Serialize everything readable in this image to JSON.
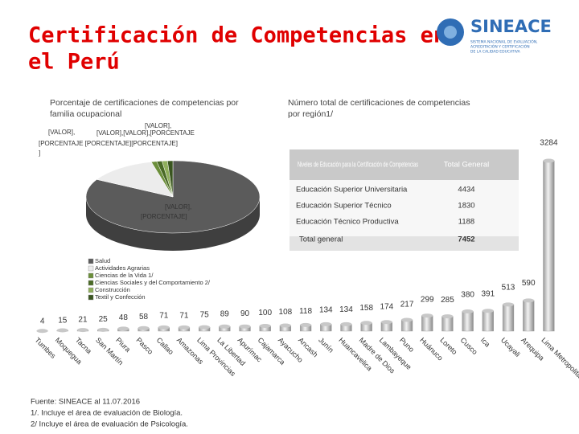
{
  "title": [
    "Certificación de Competencias en",
    "el Perú"
  ],
  "logo": {
    "name": "SINEACE",
    "subtitle": [
      "SISTEMA NACIONAL DE EVALUACIÓN,",
      "ACREDITACIÓN Y CERTIFICACIÓN",
      "DE LA CALIDAD EDUCATIVA"
    ]
  },
  "chart_data": [
    {
      "type": "pie",
      "title": [
        "Porcentaje de certificaciones de competencias por",
        "familia ocupacional"
      ],
      "categories": [
        "Salud",
        "Actividades Agrarias",
        "Ciencias de la Vida 1/",
        "Ciencias Sociales y del Comportamiento 2/",
        "Construcción",
        "Textil y Confección"
      ],
      "values": [
        83,
        13,
        1,
        1,
        1,
        1
      ],
      "colors": [
        "#5b5b5b",
        "#ececec",
        "#6b8e3a",
        "#4a6a26",
        "#8fae5c",
        "#3a5520"
      ],
      "annotations": [
        "[VALOR],",
        "[VALOR],",
        "[VALOR],[VALOR],[PORCENTAJE",
        "[PORCENTAJE [PORCENTAJE][PORCENTAJE]",
        "]",
        "[VALOR],",
        "[PORCENTAJE]"
      ]
    },
    {
      "type": "bar",
      "title": [
        "Número total de certificaciones de competencias",
        "por región1/"
      ],
      "categories": [
        "Tumbes",
        "Moquegua",
        "Tacna",
        "San Martín",
        "Piura",
        "Pasco",
        "Callao",
        "Amazonas",
        "Lima Provincias",
        "La Libertad",
        "Apurímac",
        "Cajamarca",
        "Ayacucho",
        "Ancash",
        "Junín",
        "Huancavelica",
        "Madre de Dios",
        "Lambayeque",
        "Puno",
        "Huánuco",
        "Loreto",
        "Cusco",
        "Ica",
        "Ucayali",
        "Arequipa",
        "Lima Metropolitana"
      ],
      "values": [
        4,
        15,
        21,
        25,
        48,
        58,
        71,
        71,
        75,
        89,
        90,
        100,
        108,
        118,
        134,
        134,
        158,
        174,
        217,
        299,
        285,
        380,
        391,
        513,
        590,
        3284
      ],
      "color": "#c8c8c8"
    }
  ],
  "table": {
    "header": [
      "Niveles de Educación para la Certificación de Competencias",
      "Total General"
    ],
    "rows": [
      [
        "Educación Superior Universitaria",
        "4434"
      ],
      [
        "Educación Superior Técnico",
        "1830"
      ],
      [
        "Educación Técnico Productiva",
        "1188"
      ],
      [
        "Total general",
        "7452"
      ]
    ]
  },
  "footnotes": [
    "Fuente: SINEACE al 11.07.2016",
    "1/. Incluye el área de evaluación de Biología.",
    "2/ Incluye el área de evaluación de Psicología."
  ]
}
